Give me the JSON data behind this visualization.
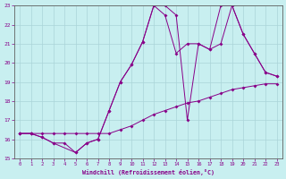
{
  "xlabel": "Windchill (Refroidissement éolien,°C)",
  "xlim": [
    -0.5,
    23.5
  ],
  "ylim": [
    15,
    23
  ],
  "yticks": [
    15,
    16,
    17,
    18,
    19,
    20,
    21,
    22,
    23
  ],
  "xticks": [
    0,
    1,
    2,
    3,
    4,
    5,
    6,
    7,
    8,
    9,
    10,
    11,
    12,
    13,
    14,
    15,
    16,
    17,
    18,
    19,
    20,
    21,
    22,
    23
  ],
  "bg_color": "#c8eff0",
  "line_color": "#880088",
  "grid_color": "#aad4d8",
  "line1_x": [
    0,
    1,
    2,
    3,
    4,
    5,
    6,
    7,
    8,
    9,
    10,
    11,
    12,
    13,
    14,
    15,
    16,
    17,
    18,
    19,
    20,
    21,
    22,
    23
  ],
  "line1_y": [
    16.3,
    16.3,
    16.3,
    16.3,
    16.3,
    16.3,
    16.3,
    16.3,
    16.3,
    16.5,
    16.7,
    17.0,
    17.3,
    17.5,
    17.7,
    17.9,
    18.0,
    18.2,
    18.4,
    18.6,
    18.7,
    18.8,
    18.9,
    18.9
  ],
  "line2_x": [
    0,
    1,
    2,
    3,
    5,
    6,
    7,
    8,
    9,
    10,
    11,
    12,
    13,
    14,
    15,
    16,
    17,
    18,
    19,
    20,
    21,
    22,
    23
  ],
  "line2_y": [
    16.3,
    16.3,
    16.1,
    15.8,
    15.3,
    15.8,
    16.0,
    17.5,
    19.0,
    19.9,
    21.1,
    23.0,
    22.5,
    20.5,
    21.0,
    21.0,
    20.7,
    21.0,
    23.0,
    21.5,
    20.5,
    19.5,
    19.3
  ],
  "line3_x": [
    0,
    1,
    2,
    3,
    4,
    5,
    6,
    7,
    8,
    9,
    10,
    11,
    12,
    13,
    14,
    15,
    16,
    17,
    18,
    19,
    20,
    21,
    22,
    23
  ],
  "line3_y": [
    16.3,
    16.3,
    16.1,
    15.8,
    15.8,
    15.3,
    15.8,
    16.0,
    17.5,
    19.0,
    19.9,
    21.1,
    23.0,
    23.0,
    22.5,
    17.0,
    21.0,
    20.7,
    23.0,
    23.0,
    21.5,
    20.5,
    19.5,
    19.3
  ]
}
